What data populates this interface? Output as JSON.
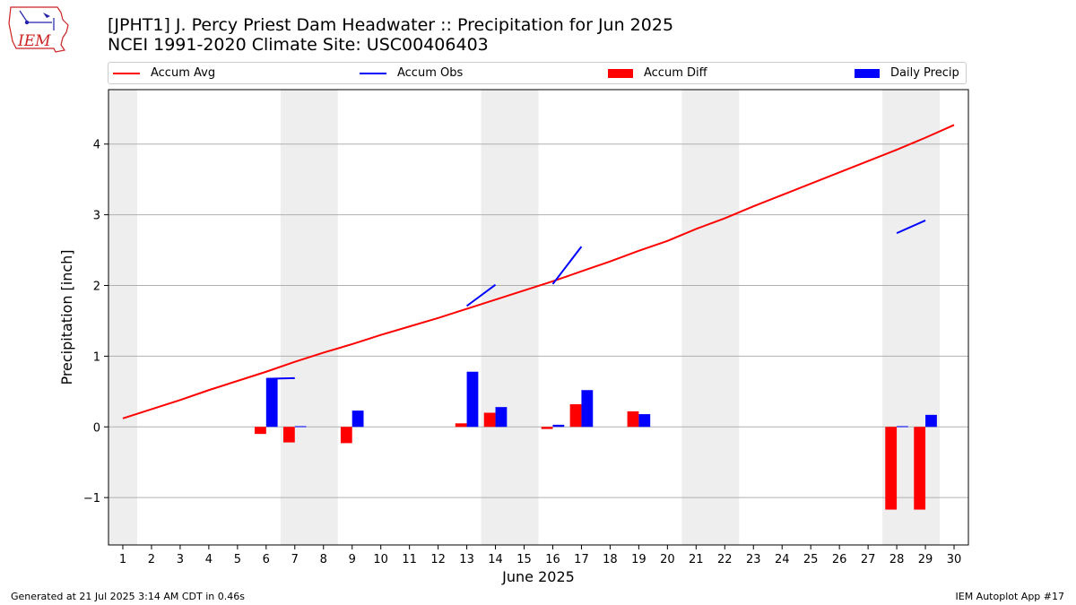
{
  "logo": {
    "text": "IEM"
  },
  "title": {
    "line1": "[JPHT1] J. Percy Priest Dam Headwater :: Precipitation for Jun 2025",
    "line2": "NCEI 1991-2020 Climate Site: USC00406403"
  },
  "legend": {
    "accum_avg": "Accum Avg",
    "accum_obs": "Accum Obs",
    "accum_diff": "Accum Diff",
    "daily_precip": "Daily Precip"
  },
  "footer": {
    "generated": "Generated at 21 Jul 2025 3:14 AM CDT in 0.46s",
    "app": "IEM Autoplot App #17"
  },
  "colors": {
    "accum_avg": "#ff0000",
    "accum_obs": "#0000ff",
    "accum_diff": "#ff0000",
    "daily_precip": "#0000ff",
    "weekend_shade": "#eeeeee",
    "grid": "#b0b0b0"
  },
  "chart_data": {
    "type": "bar",
    "xlabel": "June 2025",
    "ylabel": "Precipitation [inch]",
    "xlim": [
      0.5,
      30.5
    ],
    "ylim": [
      -1.67,
      4.77
    ],
    "yticks": [
      -1,
      0,
      1,
      2,
      3,
      4
    ],
    "ytick_labels": [
      "−1",
      "0",
      "1",
      "2",
      "3",
      "4"
    ],
    "days": [
      1,
      2,
      3,
      4,
      5,
      6,
      7,
      8,
      9,
      10,
      11,
      12,
      13,
      14,
      15,
      16,
      17,
      18,
      19,
      20,
      21,
      22,
      23,
      24,
      25,
      26,
      27,
      28,
      29,
      30
    ],
    "shaded_days": [
      [
        0.5,
        1.5
      ],
      [
        6.5,
        8.5
      ],
      [
        13.5,
        15.5
      ],
      [
        20.5,
        22.5
      ],
      [
        27.5,
        29.5
      ]
    ],
    "grid": "y",
    "legend_position": "top",
    "series": [
      {
        "name": "Accum Avg",
        "type": "line",
        "x": [
          1,
          2,
          3,
          4,
          5,
          6,
          7,
          8,
          9,
          10,
          11,
          12,
          13,
          14,
          15,
          16,
          17,
          18,
          19,
          20,
          21,
          22,
          23,
          24,
          25,
          26,
          27,
          28,
          29,
          30
        ],
        "values": [
          0.12,
          0.25,
          0.38,
          0.52,
          0.65,
          0.78,
          0.92,
          1.05,
          1.17,
          1.3,
          1.42,
          1.54,
          1.67,
          1.8,
          1.93,
          2.06,
          2.2,
          2.34,
          2.49,
          2.63,
          2.8,
          2.95,
          3.12,
          3.28,
          3.44,
          3.6,
          3.76,
          3.92,
          4.09,
          4.27
        ]
      },
      {
        "name": "Accum Obs",
        "type": "line",
        "segments": [
          {
            "x": [
              6,
              7
            ],
            "values": [
              0.68,
              0.69
            ]
          },
          {
            "x": [
              13,
              14
            ],
            "values": [
              1.71,
              2.01
            ]
          },
          {
            "x": [
              16,
              17
            ],
            "values": [
              2.02,
              2.55
            ]
          },
          {
            "x": [
              28,
              29
            ],
            "values": [
              2.74,
              2.92
            ]
          }
        ]
      },
      {
        "name": "Accum Diff",
        "type": "bar",
        "x": [
          6,
          7,
          9,
          13,
          14,
          16,
          17,
          19,
          28,
          29
        ],
        "values": [
          -0.1,
          -0.22,
          -0.23,
          0.05,
          0.2,
          -0.03,
          0.32,
          0.22,
          -1.17,
          -1.17
        ]
      },
      {
        "name": "Daily Precip",
        "type": "bar",
        "x": [
          6,
          7,
          9,
          13,
          14,
          16,
          17,
          19,
          28,
          29
        ],
        "values": [
          0.68,
          0.01,
          0.23,
          0.78,
          0.28,
          0.03,
          0.52,
          0.18,
          0.01,
          0.17
        ]
      }
    ]
  }
}
